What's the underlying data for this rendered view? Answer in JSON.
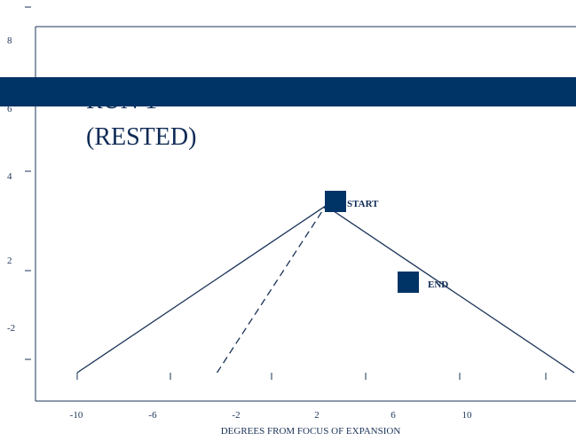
{
  "chart_data": {
    "type": "line",
    "title_lines": [
      "RUN 1",
      "(RESTED)"
    ],
    "xlabel": "DEGREES FROM FOCUS OF EXPANSION",
    "ylabel": "",
    "x_tick_labels": [
      "-10",
      "-6",
      "-2",
      "2",
      "6",
      "10"
    ],
    "y_tick_labels": [
      "8",
      "6",
      "4",
      "2",
      "-2"
    ],
    "series": [
      {
        "style": "solid",
        "points": [
          [
            -10,
            0
          ],
          [
            -2,
            3.3
          ],
          [
            6,
            0
          ]
        ]
      },
      {
        "style": "dashed",
        "points": [
          [
            -5.5,
            0
          ],
          [
            -2,
            3.3
          ]
        ]
      }
    ],
    "markers": [
      {
        "label": "START",
        "x": -2,
        "y": 3.3
      },
      {
        "label": "END",
        "x": 2,
        "y": 1.6
      }
    ],
    "banner_color": "#003366",
    "line_color": "#1a3358",
    "marker_color": "#003366",
    "grid": false
  }
}
